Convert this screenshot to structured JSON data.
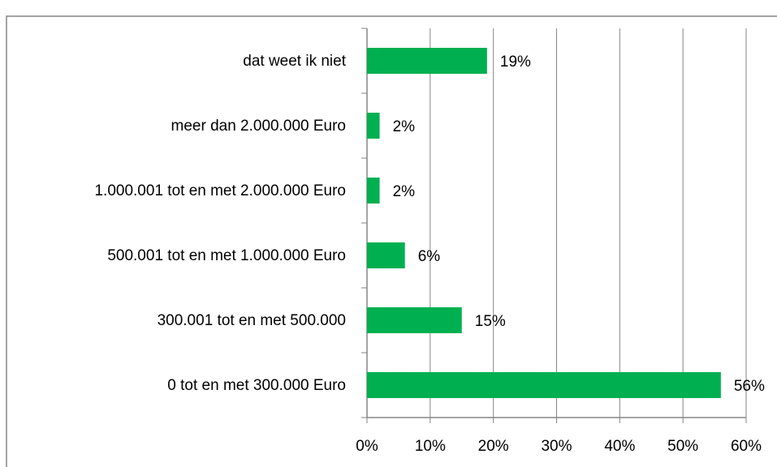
{
  "chart_data": {
    "type": "barh",
    "categories": [
      "dat weet ik niet",
      "meer dan 2.000.000 Euro",
      "1.000.001 tot en met 2.000.000 Euro",
      "500.001 tot en met 1.000.000 Euro",
      "300.001 tot en met 500.000",
      "0 tot en met 300.000 Euro"
    ],
    "values": [
      19,
      2,
      2,
      6,
      15,
      56
    ],
    "value_labels": [
      "19%",
      "2%",
      "2%",
      "6%",
      "15%",
      "56%"
    ],
    "color": "#00b050",
    "xlim": [
      0,
      60
    ],
    "xticks": [
      {
        "value": 0,
        "label": "0%"
      },
      {
        "value": 10,
        "label": "10%"
      },
      {
        "value": 20,
        "label": "20%"
      },
      {
        "value": 30,
        "label": "30%"
      },
      {
        "value": 40,
        "label": "40%"
      },
      {
        "value": 50,
        "label": "50%"
      },
      {
        "value": 60,
        "label": "60%"
      }
    ],
    "grid": true
  }
}
